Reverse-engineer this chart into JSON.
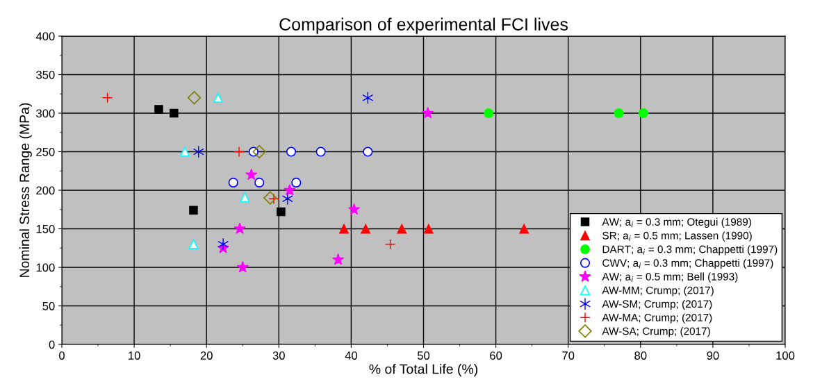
{
  "chart_data": {
    "type": "scatter",
    "title": "Comparison of experimental FCI lives",
    "xlabel": "% of Total Life (%)",
    "ylabel": "Nominal Stress Range (MPa)",
    "xlim": [
      0,
      100
    ],
    "xticks": [
      0,
      10,
      20,
      30,
      40,
      50,
      60,
      70,
      80,
      90,
      100
    ],
    "ylim": [
      0,
      400
    ],
    "yticks": [
      0,
      50,
      100,
      150,
      200,
      250,
      300,
      350,
      400
    ],
    "grid": true,
    "legend": "bottom right",
    "series": [
      {
        "name": "AW; a$_{i}$ = 0.3 mm; Otegui (1989)",
        "color": "#000000",
        "marker": "square",
        "x": [
          13.4,
          15.5,
          18.2,
          30.3
        ],
        "values": [
          305,
          300,
          174,
          172
        ]
      },
      {
        "name": "SR; a$_{i}$ = 0.5 mm; Lassen (1990)",
        "color": "#ff0000",
        "marker": "triangle",
        "x": [
          39,
          42,
          47,
          50.7,
          63.9
        ],
        "values": [
          150,
          150,
          150,
          150,
          150
        ]
      },
      {
        "name": "DART; a$_{i}$ = 0.3 mm; Chappetti (1997)",
        "color": "#00ff00",
        "marker": "circle",
        "x": [
          59,
          77,
          80.4
        ],
        "values": [
          300,
          300,
          300
        ]
      },
      {
        "name": "CWV; a$_{i}$ = 0.3 mm; Chappetti (1997)",
        "color": "#0000ff",
        "marker": "circle-open",
        "x": [
          26.5,
          31.7,
          35.8,
          42.3,
          23.7,
          27.3,
          32.4
        ],
        "values": [
          250,
          250,
          250,
          250,
          210,
          210,
          210
        ]
      },
      {
        "name": "AW; a$_{i}$ = 0.5 mm; Bell (1993)",
        "color": "#ff00ff",
        "marker": "star",
        "x": [
          50.6,
          26.2,
          31.5,
          40.4,
          24.6,
          22.3,
          25,
          38.2
        ],
        "values": [
          300,
          220,
          200,
          175,
          150,
          125,
          100,
          110
        ]
      },
      {
        "name": "AW-MM; Crump; (2017)",
        "color": "#00ffff",
        "marker": "triangle-open",
        "x": [
          21.6,
          17,
          25.3,
          18.2
        ],
        "values": [
          320,
          250,
          191,
          130
        ]
      },
      {
        "name": "AW-SM; Crump; (2017)",
        "color": "#0000ff",
        "marker": "cross",
        "x": [
          42.3,
          18.9,
          31.2,
          22.3
        ],
        "values": [
          320,
          250,
          189,
          130
        ]
      },
      {
        "name": "AW-MA; Crump; (2017)",
        "color": "#ff0000",
        "marker": "plus",
        "x": [
          6.3,
          24.5,
          29.3,
          45.4
        ],
        "values": [
          320,
          250,
          189,
          130
        ]
      },
      {
        "name": "AW-SA; Crump; (2017)",
        "color": "#808000",
        "marker": "diamond-open",
        "x": [
          18.3,
          27.3,
          28.8
        ],
        "values": [
          320,
          250,
          190
        ]
      }
    ]
  }
}
